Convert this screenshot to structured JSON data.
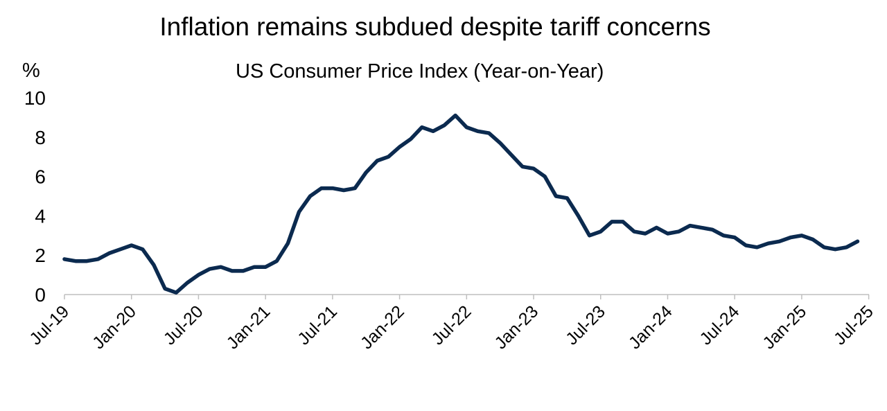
{
  "chart_data": {
    "type": "line",
    "title": "Inflation remains subdued despite tariff concerns",
    "subtitle": "US Consumer Price Index (Year-on-Year)",
    "ylabel": "%",
    "xlabel": "",
    "ylim": [
      0,
      10
    ],
    "yticks": [
      "0",
      "2",
      "4",
      "6",
      "8",
      "10"
    ],
    "xtick_labels": [
      "Jul-19",
      "Jan-20",
      "Jul-20",
      "Jan-21",
      "Jul-21",
      "Jan-22",
      "Jul-22",
      "Jan-23",
      "Jul-23",
      "Jan-24",
      "Jul-24",
      "Jan-25",
      "Jul-25"
    ],
    "x_start": "Jul-19",
    "grid": false,
    "series": [
      {
        "name": "US CPI YoY",
        "color": "#0b2a4f",
        "values": [
          1.8,
          1.7,
          1.7,
          1.8,
          2.1,
          2.3,
          2.5,
          2.3,
          1.5,
          0.3,
          0.1,
          0.6,
          1.0,
          1.3,
          1.4,
          1.2,
          1.2,
          1.4,
          1.4,
          1.7,
          2.6,
          4.2,
          5.0,
          5.4,
          5.4,
          5.3,
          5.4,
          6.2,
          6.8,
          7.0,
          7.5,
          7.9,
          8.5,
          8.3,
          8.6,
          9.1,
          8.5,
          8.3,
          8.2,
          7.7,
          7.1,
          6.5,
          6.4,
          6.0,
          5.0,
          4.9,
          4.0,
          3.0,
          3.2,
          3.7,
          3.7,
          3.2,
          3.1,
          3.4,
          3.1,
          3.2,
          3.5,
          3.4,
          3.3,
          3.0,
          2.9,
          2.5,
          2.4,
          2.6,
          2.7,
          2.9,
          3.0,
          2.8,
          2.4,
          2.3,
          2.4,
          2.7
        ]
      }
    ]
  }
}
